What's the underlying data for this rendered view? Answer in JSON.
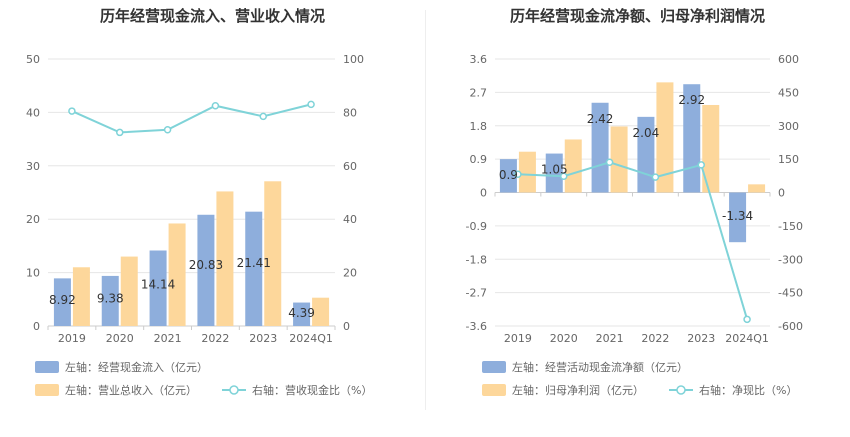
{
  "colors": {
    "bar1": "#8eaedc",
    "bar2": "#fdd79b",
    "line": "#7fd3d8",
    "grid": "#e6e6e6",
    "axis": "#cccccc"
  },
  "chart_data": [
    {
      "type": "bar",
      "title": "历年经营现金流入、营业收入情况",
      "categories": [
        "2019",
        "2020",
        "2021",
        "2022",
        "2023",
        "2024Q1"
      ],
      "y_left": {
        "min": 0,
        "max": 50,
        "ticks": [
          "0",
          "10",
          "20",
          "30",
          "40",
          "50"
        ]
      },
      "y_right": {
        "min": 0,
        "max": 100,
        "ticks": [
          "0",
          "20",
          "40",
          "60",
          "80",
          "100"
        ]
      },
      "series": [
        {
          "name": "左轴：经营现金流入（亿元）",
          "axis": "left",
          "kind": "bar",
          "values": [
            8.92,
            9.38,
            14.14,
            20.83,
            21.41,
            4.39
          ],
          "labels": [
            "8.92",
            "9.38",
            "14.14",
            "20.83",
            "21.41",
            "4.39"
          ]
        },
        {
          "name": "左轴：营业总收入（亿元）",
          "axis": "left",
          "kind": "bar",
          "values": [
            11.0,
            13.0,
            19.2,
            25.2,
            27.1,
            5.3
          ]
        },
        {
          "name": "右轴：营收现金比（%）",
          "axis": "right",
          "kind": "line",
          "values": [
            80.5,
            72.5,
            73.5,
            82.5,
            78.5,
            83.0
          ]
        }
      ],
      "grid": true,
      "legend": "bottom"
    },
    {
      "type": "bar",
      "title": "历年经营现金流净额、归母净利润情况",
      "categories": [
        "2019",
        "2020",
        "2021",
        "2022",
        "2023",
        "2024Q1"
      ],
      "y_left": {
        "min": -3.6,
        "max": 3.6,
        "ticks": [
          "-3.6",
          "-2.7",
          "-1.8",
          "-0.9",
          "0",
          "0.9",
          "1.8",
          "2.7",
          "3.6"
        ]
      },
      "y_right": {
        "min": -600,
        "max": 600,
        "ticks": [
          "-600",
          "-450",
          "-300",
          "-150",
          "0",
          "150",
          "300",
          "450",
          "600"
        ]
      },
      "series": [
        {
          "name": "左轴：经营活动现金流净额（亿元）",
          "axis": "left",
          "kind": "bar",
          "values": [
            0.9,
            1.05,
            2.42,
            2.04,
            2.92,
            -1.34
          ],
          "labels": [
            "0.9",
            "1.05",
            "2.42",
            "2.04",
            "2.92",
            "-1.34"
          ]
        },
        {
          "name": "左轴：归母净利润（亿元）",
          "axis": "left",
          "kind": "bar",
          "values": [
            1.1,
            1.43,
            1.78,
            2.97,
            2.36,
            0.22
          ]
        },
        {
          "name": "右轴：净现比（%）",
          "axis": "right",
          "kind": "line",
          "values": [
            82,
            73,
            136,
            69,
            124,
            -570
          ]
        }
      ],
      "grid": true,
      "legend": "bottom"
    }
  ]
}
